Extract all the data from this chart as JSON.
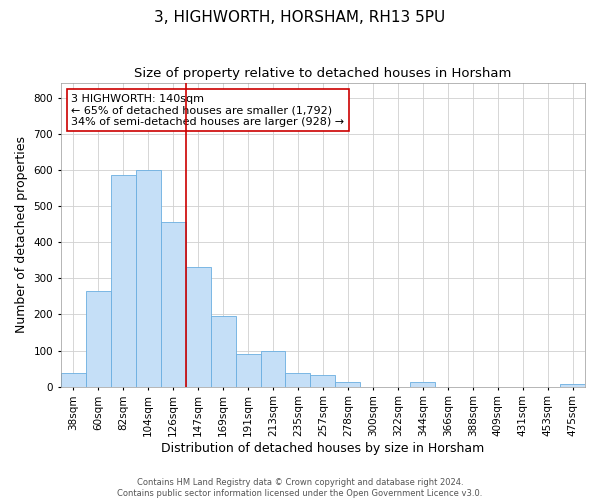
{
  "title": "3, HIGHWORTH, HORSHAM, RH13 5PU",
  "subtitle": "Size of property relative to detached houses in Horsham",
  "xlabel": "Distribution of detached houses by size in Horsham",
  "ylabel": "Number of detached properties",
  "footer1": "Contains HM Land Registry data © Crown copyright and database right 2024.",
  "footer2": "Contains public sector information licensed under the Open Government Licence v3.0.",
  "bar_labels": [
    "38sqm",
    "60sqm",
    "82sqm",
    "104sqm",
    "126sqm",
    "147sqm",
    "169sqm",
    "191sqm",
    "213sqm",
    "235sqm",
    "257sqm",
    "278sqm",
    "300sqm",
    "322sqm",
    "344sqm",
    "366sqm",
    "388sqm",
    "409sqm",
    "431sqm",
    "453sqm",
    "475sqm"
  ],
  "bar_heights": [
    38,
    265,
    585,
    600,
    455,
    330,
    195,
    90,
    100,
    38,
    32,
    14,
    0,
    0,
    12,
    0,
    0,
    0,
    0,
    0,
    8
  ],
  "bar_color": "#c5dff7",
  "bar_edge_color": "#6aaee0",
  "vline_color": "#cc0000",
  "annotation_text": "3 HIGHWORTH: 140sqm\n← 65% of detached houses are smaller (1,792)\n34% of semi-detached houses are larger (928) →",
  "annotation_box_color": "#ffffff",
  "annotation_box_edge": "#cc0000",
  "ylim": [
    0,
    840
  ],
  "yticks": [
    0,
    100,
    200,
    300,
    400,
    500,
    600,
    700,
    800
  ],
  "background_color": "#ffffff",
  "grid_color": "#d0d0d0",
  "title_fontsize": 11,
  "subtitle_fontsize": 9.5,
  "ylabel_fontsize": 9,
  "xlabel_fontsize": 9,
  "tick_fontsize": 7.5,
  "annotation_fontsize": 8,
  "footer_fontsize": 6
}
